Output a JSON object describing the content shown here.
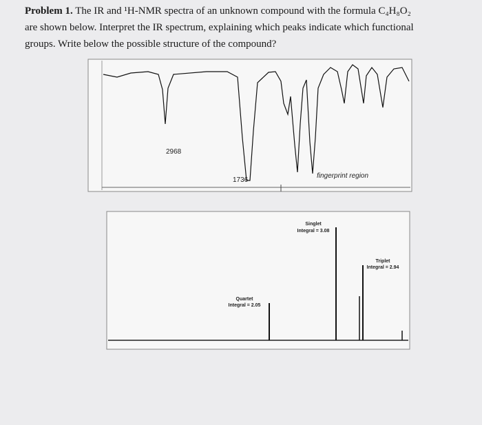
{
  "problem": {
    "label": "Problem 1.",
    "lines": [
      "The IR and ¹H-NMR spectra of an unknown compound with the formula C₄H₈O₂",
      "are shown below. Interpret the IR spectrum, explaining which peaks indicate which functional",
      "groups. Write below the possible structure of the compound?"
    ]
  },
  "ir_spectrum": {
    "annotations": [
      "2968",
      "1736",
      "fingerprint region"
    ]
  },
  "nmr_spectrum": {
    "peaks": [
      {
        "name": "Quartet",
        "integral": "Integral = 2.05"
      },
      {
        "name": "Singlet",
        "integral": "Integral = 3.08"
      },
      {
        "name": "Triplet",
        "integral": "Integral = 2.94"
      }
    ]
  }
}
